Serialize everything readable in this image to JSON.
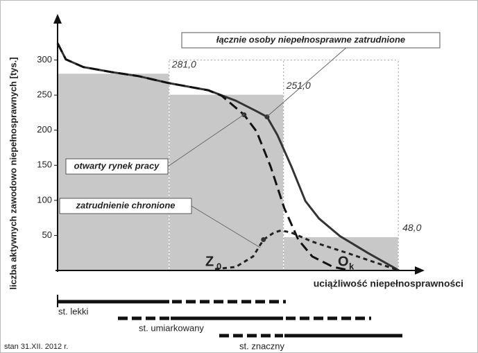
{
  "chart_data": {
    "type": "histogram-lines",
    "y_label": "liczba aktywnych zawodowo niepełnosprawnych [tys.]",
    "x_label": "uciążliwość niepełnosprawności",
    "xlim": [
      0,
      100
    ],
    "ylim": [
      0,
      350
    ],
    "yticks": [
      50,
      100,
      150,
      200,
      250,
      300
    ],
    "bins": [
      0,
      31.1,
      63,
      95
    ],
    "values": [
      281.0,
      251.0,
      48.0
    ],
    "value_labels": [
      "281,0",
      "251,0",
      "48,0"
    ],
    "bar_color": "#c8c8c8",
    "series": [
      {
        "name": "łącznie osoby niepełnosprawne zatrudnione",
        "color": "#333333",
        "dash": "none",
        "x": [
          0,
          2.3,
          7.2,
          14.9,
          22.6,
          31.1,
          42,
          49.7,
          55.5,
          58.4,
          61.3,
          65.2,
          69.1,
          72.9,
          78.7,
          86.5,
          95.2
        ],
        "values": [
          324,
          301,
          290,
          283,
          277,
          267,
          257,
          242,
          227,
          219,
          193,
          148,
          99,
          74,
          49,
          25,
          0
        ]
      },
      {
        "name": "otwarty rynek pracy",
        "color": "#111111",
        "dash": "14 7",
        "x": [
          0,
          2.3,
          7.2,
          14.9,
          22.6,
          31.1,
          42,
          45.8,
          52,
          55.5,
          59.4,
          63.2,
          67.1,
          71,
          76.8,
          81.6
        ],
        "values": [
          324,
          301,
          290,
          283,
          277,
          267,
          257,
          249,
          222,
          198,
          148,
          89,
          44,
          20,
          5,
          0
        ]
      },
      {
        "name": "zatrudnienie chronione",
        "color": "#222222",
        "dash": "6 5",
        "x": [
          43.9,
          49.7,
          54.5,
          57.4,
          60.3,
          62.3,
          65.2,
          71,
          80.7,
          95.2
        ],
        "values": [
          2,
          5,
          20,
          44,
          54,
          57,
          54,
          41,
          25,
          0
        ]
      }
    ],
    "annotations": [
      {
        "text": "Z",
        "sub": "0"
      },
      {
        "text": "O",
        "sub": "k"
      }
    ],
    "degrees": [
      "st. lekki",
      "st. umiarkowany",
      "st. znaczny"
    ],
    "footnote": "stan 31.XII. 2012 r."
  }
}
